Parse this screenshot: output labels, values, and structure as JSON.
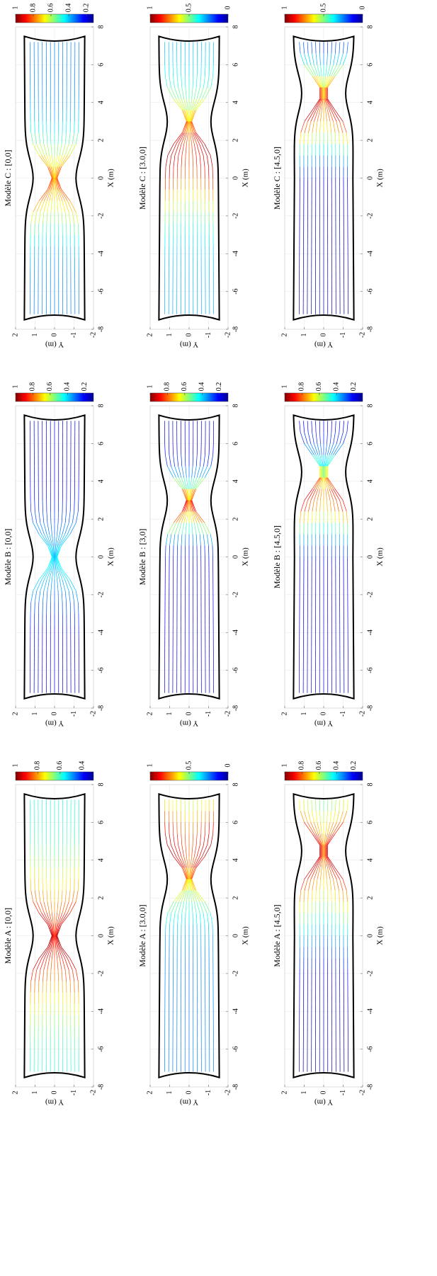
{
  "chart_data": [
    {
      "type": "streamline",
      "title": "Modèle C : [0,0]",
      "xlabel": "X (m)",
      "ylabel": "Y (m)",
      "xlim": [
        -8,
        8
      ],
      "xticks": [
        -8,
        -6,
        -4,
        -2,
        0,
        2,
        4,
        6,
        8
      ],
      "ylim": [
        -2,
        2
      ],
      "yticks": [
        -2,
        -1,
        0,
        1,
        2
      ],
      "grid": true,
      "colorbar_lim": [
        0.12,
        1
      ],
      "colorbar_ticks": [
        1,
        0.8,
        0.6,
        0.4,
        0.2
      ]
    },
    {
      "type": "streamline",
      "title": "Modèle C : [3.0,0]",
      "xlabel": "X (m)",
      "ylabel": "Y (m)",
      "xlim": [
        -8,
        8
      ],
      "xticks": [
        -8,
        -6,
        -4,
        -2,
        0,
        2,
        4,
        6,
        8
      ],
      "ylim": [
        -2,
        2
      ],
      "yticks": [
        -2,
        -1,
        0,
        1,
        2
      ],
      "grid": true,
      "colorbar_lim": [
        0,
        1
      ],
      "colorbar_ticks": [
        1,
        0.5,
        0
      ]
    },
    {
      "type": "streamline",
      "title": "Modèle C : [4.5,0]",
      "xlabel": "X (m)",
      "ylabel": "Y (m)",
      "xlim": [
        -8,
        8
      ],
      "xticks": [
        -8,
        -6,
        -4,
        -2,
        0,
        2,
        4,
        6,
        8
      ],
      "ylim": [
        -2,
        2
      ],
      "yticks": [
        -2,
        -1,
        0,
        1,
        2
      ],
      "grid": true,
      "colorbar_lim": [
        0,
        1
      ],
      "colorbar_ticks": [
        1,
        0.5,
        0
      ]
    },
    {
      "type": "streamline",
      "title": "Modèle B : [0,0]",
      "xlabel": "X (m)",
      "ylabel": "Y (m)",
      "xlim": [
        -8,
        8
      ],
      "xticks": [
        -8,
        -6,
        -4,
        -2,
        0,
        2,
        4,
        6,
        8
      ],
      "ylim": [
        -2,
        2
      ],
      "yticks": [
        -2,
        -1,
        0,
        1,
        2
      ],
      "grid": true,
      "colorbar_lim": [
        0.1,
        1
      ],
      "colorbar_ticks": [
        1,
        0.8,
        0.6,
        0.4,
        0.2
      ]
    },
    {
      "type": "streamline",
      "title": "Modèle B : [3,0]",
      "xlabel": "X (m)",
      "ylabel": "Y (m)",
      "xlim": [
        -8,
        8
      ],
      "xticks": [
        -8,
        -6,
        -4,
        -2,
        0,
        2,
        4,
        6,
        8
      ],
      "ylim": [
        -2,
        2
      ],
      "yticks": [
        -2,
        -1,
        0,
        1,
        2
      ],
      "grid": true,
      "colorbar_lim": [
        0.1,
        1
      ],
      "colorbar_ticks": [
        1,
        0.8,
        0.6,
        0.4,
        0.2
      ]
    },
    {
      "type": "streamline",
      "title": "Modèle B : [4.5,0]",
      "xlabel": "X (m)",
      "ylabel": "Y (m)",
      "xlim": [
        -8,
        8
      ],
      "xticks": [
        -8,
        -6,
        -4,
        -2,
        0,
        2,
        4,
        6,
        8
      ],
      "ylim": [
        -2,
        2
      ],
      "yticks": [
        -2,
        -1,
        0,
        1,
        2
      ],
      "grid": true,
      "colorbar_lim": [
        0.1,
        1
      ],
      "colorbar_ticks": [
        1,
        0.8,
        0.6,
        0.4,
        0.2
      ]
    },
    {
      "type": "streamline",
      "title": "Modèle A : [0,0]",
      "xlabel": "X (m)",
      "ylabel": "Y (m)",
      "xlim": [
        -8,
        8
      ],
      "xticks": [
        -8,
        -6,
        -4,
        -2,
        0,
        2,
        4,
        6,
        8
      ],
      "ylim": [
        -2,
        2
      ],
      "yticks": [
        -2,
        -1,
        0,
        1,
        2
      ],
      "grid": true,
      "colorbar_lim": [
        0.3,
        1
      ],
      "colorbar_ticks": [
        1,
        0.8,
        0.6,
        0.4
      ]
    },
    {
      "type": "streamline",
      "title": "Modèle A : [3.0,0]",
      "xlabel": "X (m)",
      "ylabel": "Y (m)",
      "xlim": [
        -8,
        8
      ],
      "xticks": [
        -8,
        -6,
        -4,
        -2,
        0,
        2,
        4,
        6,
        8
      ],
      "ylim": [
        -2,
        2
      ],
      "yticks": [
        -2,
        -1,
        0,
        1,
        2
      ],
      "grid": true,
      "colorbar_lim": [
        0,
        1
      ],
      "colorbar_ticks": [
        1,
        0.5,
        0
      ]
    },
    {
      "type": "streamline",
      "title": "Modèle A : [4.5,0]",
      "xlabel": "X (m)",
      "ylabel": "Y (m)",
      "xlim": [
        -8,
        8
      ],
      "xticks": [
        -8,
        -6,
        -4,
        -2,
        0,
        2,
        4,
        6,
        8
      ],
      "ylim": [
        -2,
        2
      ],
      "yticks": [
        -2,
        -1,
        0,
        1,
        2
      ],
      "grid": true,
      "colorbar_lim": [
        0.1,
        1
      ],
      "colorbar_ticks": [
        1,
        0.8,
        0.6,
        0.4,
        0.2
      ]
    }
  ]
}
